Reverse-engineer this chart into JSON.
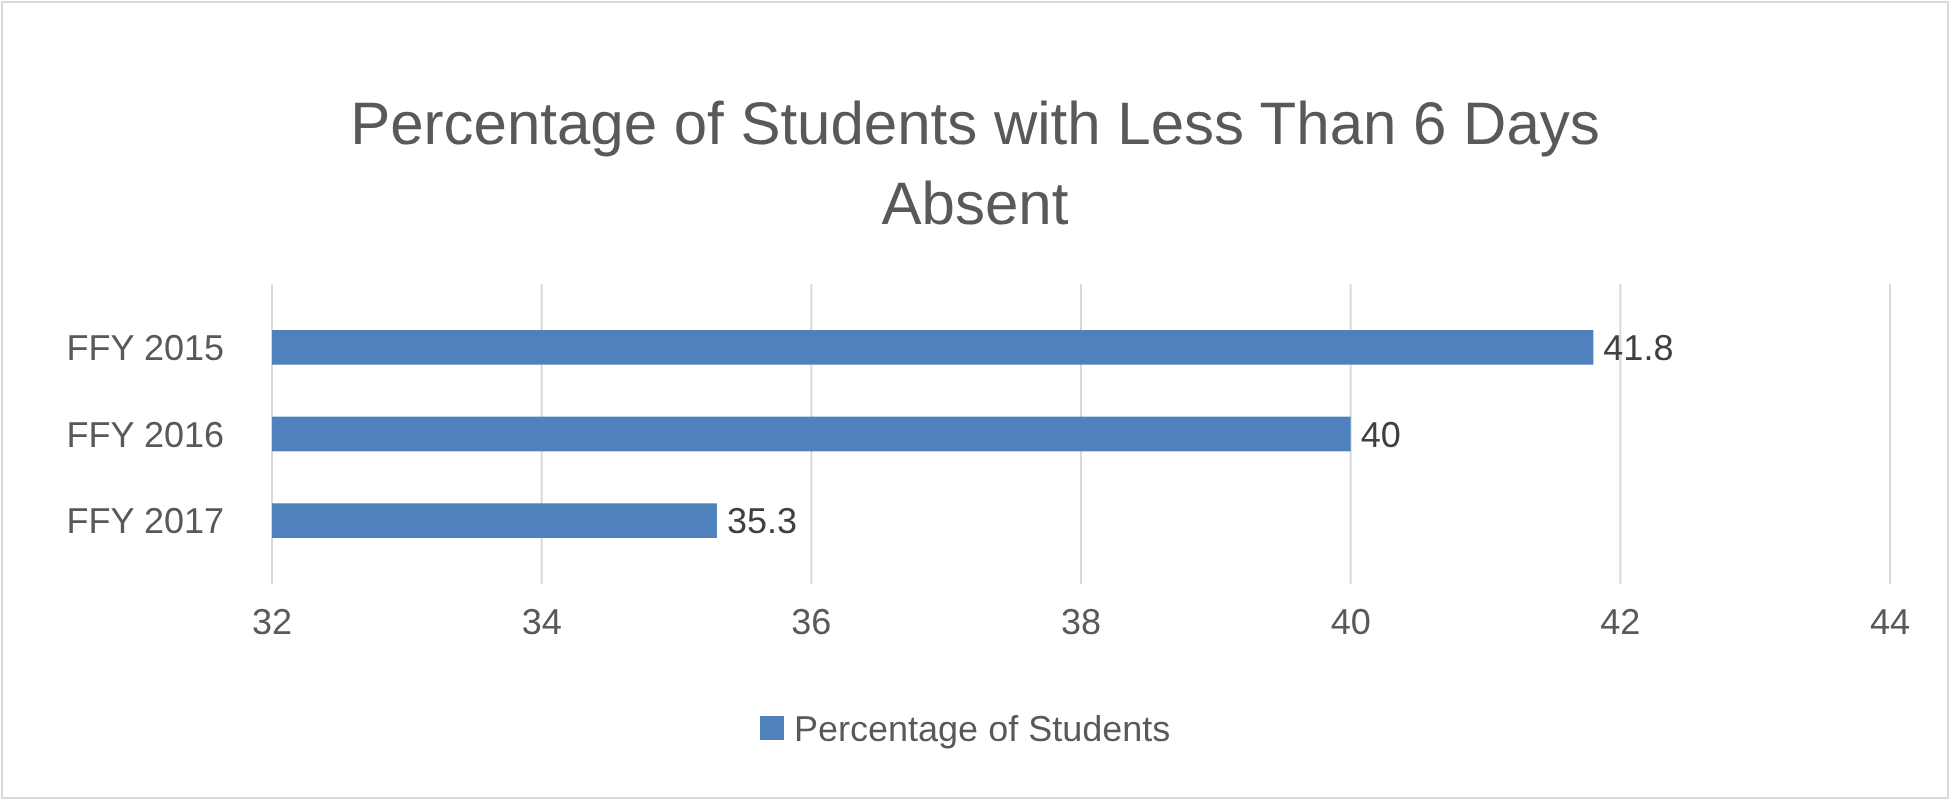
{
  "chart_data": {
    "type": "bar",
    "orientation": "horizontal",
    "title": "Percentage of Students with Less Than 6 Days Absent",
    "categories": [
      "FFY 2015",
      "FFY 2016",
      "FFY 2017"
    ],
    "series": [
      {
        "name": "Percentage of Students",
        "color": "#4f81bd",
        "values": [
          41.8,
          40,
          35.3
        ]
      }
    ],
    "xlim": [
      32,
      44
    ],
    "xticks": [
      32,
      34,
      36,
      38,
      40,
      42,
      44
    ],
    "grid": "x",
    "legend": "bottom",
    "data_labels": true
  }
}
